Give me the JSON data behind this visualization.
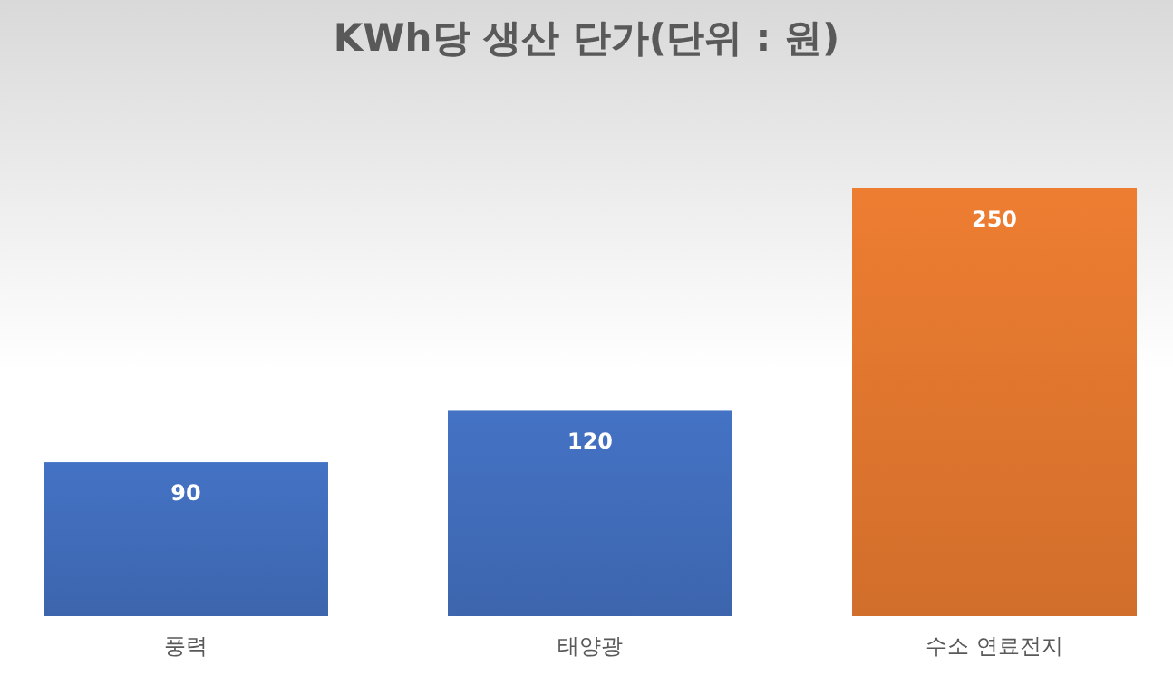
{
  "chart_data": {
    "type": "bar",
    "title": "KWh당 생산 단가(단위 : 원)",
    "categories": [
      "풍력",
      "태양광",
      "수소 연료전지"
    ],
    "values": [
      90,
      120,
      250
    ],
    "colors": [
      "#4472c4",
      "#4472c4",
      "#ed7d31"
    ],
    "data_labels": true
  }
}
